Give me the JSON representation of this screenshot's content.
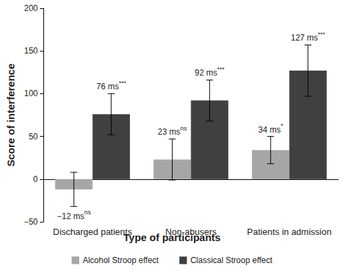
{
  "chart_data": {
    "type": "bar",
    "x_label": "Type of participants",
    "y_label": "Score of interference",
    "categories": [
      "Discharged patients",
      "Non-abusers",
      "Patients in admission"
    ],
    "ylim": [
      -50,
      200
    ],
    "yticks": [
      {
        "value": -50,
        "label": "−50"
      },
      0,
      50,
      100,
      150,
      200
    ],
    "grid": false,
    "legend": "bottom",
    "data_labels": true,
    "series": [
      {
        "name": "Alcohol Stroop effect",
        "color": "#a6a6a6",
        "values": [
          -12,
          23,
          34
        ],
        "errors": [
          20,
          24,
          16
        ],
        "value_labels": [
          "−12 ms",
          "23 ms",
          "34 ms"
        ],
        "significance": [
          "ns",
          "ns",
          "*"
        ]
      },
      {
        "name": "Classical Stroop effect",
        "color": "#404040",
        "values": [
          76,
          92,
          127
        ],
        "errors": [
          24,
          24,
          30
        ],
        "value_labels": [
          "76 ms",
          "92 ms",
          "127 ms"
        ],
        "significance": [
          "***",
          "***",
          "***"
        ]
      }
    ]
  }
}
